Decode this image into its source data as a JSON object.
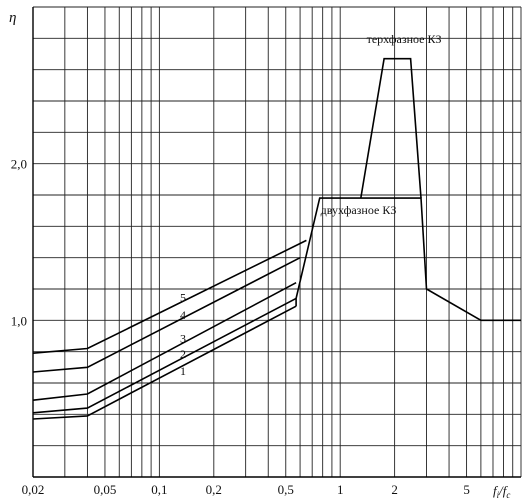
{
  "chart_data": {
    "type": "line",
    "x_scale": "log",
    "xlim": [
      0.02,
      10
    ],
    "ylim": [
      0,
      3.0
    ],
    "grid": true,
    "ylabel": "η",
    "xlabel_main": "f",
    "xlabel_sub1": "i",
    "xlabel_slash": "/",
    "xlabel_main2": "f",
    "xlabel_sub2": "c",
    "x_ticks": [
      {
        "value": 0.02,
        "label": "0,02"
      },
      {
        "value": 0.05,
        "label": "0,05"
      },
      {
        "value": 0.1,
        "label": "0,1"
      },
      {
        "value": 0.2,
        "label": "0,2"
      },
      {
        "value": 0.5,
        "label": "0,5"
      },
      {
        "value": 1,
        "label": "1"
      },
      {
        "value": 2,
        "label": "2"
      },
      {
        "value": 5,
        "label": "5"
      }
    ],
    "y_ticks": [
      {
        "value": 1.0,
        "label": "1,0"
      },
      {
        "value": 2.0,
        "label": "2,0"
      }
    ],
    "series": [
      {
        "name": "1",
        "points": [
          [
            0.02,
            0.37
          ],
          [
            0.04,
            0.39
          ],
          [
            0.57,
            1.09
          ]
        ]
      },
      {
        "name": "2",
        "points": [
          [
            0.02,
            0.41
          ],
          [
            0.04,
            0.44
          ],
          [
            0.57,
            1.14
          ]
        ]
      },
      {
        "name": "3",
        "points": [
          [
            0.02,
            0.49
          ],
          [
            0.04,
            0.53
          ],
          [
            0.57,
            1.24
          ]
        ]
      },
      {
        "name": "4",
        "points": [
          [
            0.02,
            0.67
          ],
          [
            0.04,
            0.7
          ],
          [
            0.6,
            1.4
          ]
        ]
      },
      {
        "name": "5",
        "points": [
          [
            0.02,
            0.79
          ],
          [
            0.04,
            0.82
          ],
          [
            0.65,
            1.51
          ]
        ]
      },
      {
        "name": "двухфазное КЗ",
        "points": [
          [
            0.57,
            1.09
          ],
          [
            0.57,
            1.14
          ],
          [
            0.77,
            1.78
          ],
          [
            2.8,
            1.78
          ],
          [
            3.0,
            1.2
          ],
          [
            6.0,
            1.0
          ],
          [
            10,
            1.0
          ]
        ]
      },
      {
        "name": "терхфазное КЗ",
        "points": [
          [
            1.3,
            1.78
          ],
          [
            1.75,
            2.67
          ],
          [
            2.45,
            2.67
          ],
          [
            2.8,
            1.78
          ]
        ]
      }
    ],
    "annotations": [
      {
        "text": "терхфазное КЗ",
        "x": 1.4,
        "y": 2.77
      },
      {
        "text": "двухфазное КЗ",
        "x": 0.78,
        "y": 1.68
      },
      {
        "text": "5",
        "x": 0.13,
        "y": 1.12
      },
      {
        "text": "4",
        "x": 0.13,
        "y": 1.01
      },
      {
        "text": "3",
        "x": 0.13,
        "y": 0.86
      },
      {
        "text": "2",
        "x": 0.13,
        "y": 0.76
      },
      {
        "text": "1",
        "x": 0.13,
        "y": 0.65
      }
    ]
  }
}
